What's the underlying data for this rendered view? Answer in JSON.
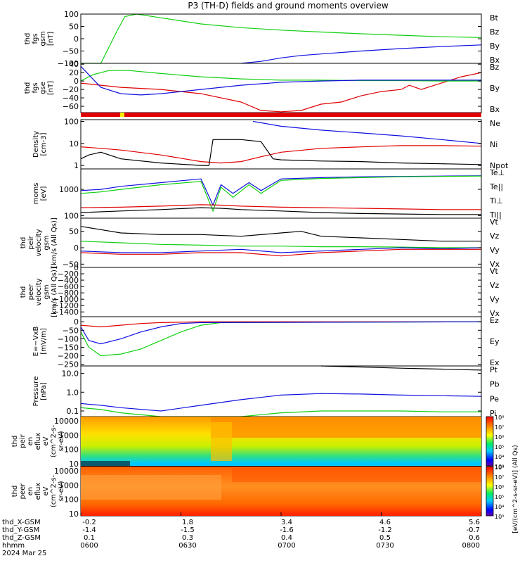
{
  "title": "P3 (TH-D) fields and ground moments overview",
  "colors": {
    "black": "#000000",
    "red": "#e00000",
    "green": "#10d010",
    "blue": "#1010e0"
  },
  "chart_data": [
    {
      "type": "line",
      "panel": "fgs_gsm",
      "ylabel": [
        "thd",
        "fgs",
        "gsm",
        "[nT]"
      ],
      "ylim": [
        -100,
        100
      ],
      "ticks": [
        "100",
        "50",
        "0",
        "−50",
        "−100"
      ],
      "legend": [
        {
          "label": "Bt",
          "color": "black"
        },
        {
          "label": "Bz",
          "color": "red"
        },
        {
          "label": "By",
          "color": "green"
        },
        {
          "label": "Bx",
          "color": "blue"
        }
      ],
      "series": [
        {
          "name": "By",
          "color": "green",
          "x": [
            0,
            0.05,
            0.09,
            0.11,
            0.14,
            0.2,
            0.3,
            0.4,
            0.5,
            0.6,
            0.7,
            0.8,
            0.9,
            1.0
          ],
          "y": [
            -100,
            -100,
            30,
            90,
            100,
            85,
            60,
            45,
            35,
            27,
            20,
            14,
            8,
            5
          ]
        },
        {
          "name": "Bx",
          "color": "blue",
          "x": [
            0.4,
            0.45,
            0.5,
            0.55,
            0.6,
            0.7,
            0.8,
            0.9,
            1.0
          ],
          "y": [
            -100,
            -92,
            -78,
            -68,
            -62,
            -50,
            -40,
            -32,
            -25
          ]
        }
      ]
    },
    {
      "type": "line",
      "panel": "fgs_gse",
      "ylabel": [
        "thd",
        "fgs",
        "gse",
        "[nT]"
      ],
      "ylim": [
        -75,
        42
      ],
      "ticks": [
        "40",
        "20",
        "0",
        "−20",
        "−40",
        "−60"
      ],
      "legend": [
        {
          "label": "Bz",
          "color": "red"
        },
        {
          "label": "By",
          "color": "green"
        },
        {
          "label": "Bx",
          "color": "blue"
        }
      ],
      "series": [
        {
          "name": "Bz",
          "color": "red",
          "x": [
            0,
            0.05,
            0.1,
            0.2,
            0.3,
            0.4,
            0.45,
            0.5,
            0.55,
            0.6,
            0.65,
            0.7,
            0.75,
            0.8,
            0.82,
            0.85,
            0.9,
            0.95,
            1.0
          ],
          "y": [
            -5,
            -10,
            -15,
            -20,
            -30,
            -50,
            -70,
            -73,
            -70,
            -55,
            -50,
            -35,
            -25,
            -20,
            -10,
            -20,
            -5,
            10,
            20
          ]
        },
        {
          "name": "By",
          "color": "green",
          "x": [
            0,
            0.03,
            0.07,
            0.12,
            0.2,
            0.3,
            0.4,
            0.5,
            0.6,
            0.7,
            0.8,
            0.9,
            1.0
          ],
          "y": [
            0,
            15,
            25,
            25,
            18,
            10,
            5,
            2,
            2,
            1,
            1,
            0,
            0
          ]
        },
        {
          "name": "Bx",
          "color": "blue",
          "x": [
            0,
            0.02,
            0.05,
            0.1,
            0.15,
            0.2,
            0.3,
            0.4,
            0.5,
            0.6,
            0.7,
            0.8,
            0.9,
            1.0
          ],
          "y": [
            35,
            15,
            -15,
            -30,
            -33,
            -30,
            -20,
            -10,
            -3,
            0,
            2,
            2,
            2,
            2
          ]
        }
      ]
    },
    {
      "type": "line",
      "panel": "density",
      "ylabel": [
        "Density",
        "[cm-3]"
      ],
      "scale": "log",
      "ylim": [
        0.7,
        120
      ],
      "ticks": [
        "100",
        "10",
        "1"
      ],
      "legend": [
        {
          "label": "Ne",
          "color": "red"
        },
        {
          "label": "Ni",
          "color": "black"
        },
        {
          "label": "Npot",
          "color": "blue"
        }
      ],
      "series": [
        {
          "name": "Ne",
          "color": "red",
          "x": [
            0,
            0.05,
            0.1,
            0.2,
            0.3,
            0.35,
            0.4,
            0.45,
            0.5,
            0.6,
            0.7,
            0.8,
            0.9,
            1.0
          ],
          "y": [
            7,
            6,
            5,
            3,
            1.5,
            1.3,
            1.5,
            2.5,
            4,
            6,
            7,
            8,
            8,
            7.5
          ]
        },
        {
          "name": "Ni",
          "color": "black",
          "x": [
            0,
            0.02,
            0.05,
            0.1,
            0.2,
            0.3,
            0.32,
            0.33,
            0.4,
            0.45,
            0.48,
            0.5,
            0.6,
            0.7,
            0.8,
            0.9,
            1.0
          ],
          "y": [
            2,
            3,
            4,
            2,
            1.3,
            1,
            1,
            15,
            15,
            12,
            2,
            1.8,
            1.6,
            1.5,
            1.3,
            1.2,
            1.1
          ]
        },
        {
          "name": "Npot",
          "color": "blue",
          "x": [
            0.43,
            0.5,
            0.6,
            0.7,
            0.8,
            0.9,
            1.0
          ],
          "y": [
            100,
            60,
            40,
            30,
            22,
            15,
            10
          ]
        }
      ]
    },
    {
      "type": "line",
      "panel": "moments",
      "ylabel": [
        "moms",
        "[eV]"
      ],
      "scale": "log",
      "ylim": [
        80,
        6000
      ],
      "ticks": [
        "1000",
        "100"
      ],
      "legend": [
        {
          "label": "Te⊥",
          "color": "red"
        },
        {
          "label": "Te||",
          "color": "black"
        },
        {
          "label": "Ti⊥",
          "color": "blue"
        },
        {
          "label": "Ti||",
          "color": "green"
        }
      ],
      "series": [
        {
          "name": "Ti⊥",
          "color": "blue",
          "x": [
            0,
            0.05,
            0.1,
            0.2,
            0.3,
            0.33,
            0.35,
            0.38,
            0.42,
            0.45,
            0.5,
            0.6,
            0.7,
            0.8,
            0.9,
            1.0
          ],
          "y": [
            900,
            1000,
            1300,
            1800,
            2500,
            250,
            1500,
            700,
            1800,
            900,
            2500,
            2800,
            3000,
            3100,
            3200,
            3300
          ]
        },
        {
          "name": "Ti||",
          "color": "green",
          "x": [
            0,
            0.05,
            0.1,
            0.2,
            0.3,
            0.33,
            0.35,
            0.38,
            0.42,
            0.45,
            0.5,
            0.6,
            0.7,
            0.8,
            0.9,
            1.0
          ],
          "y": [
            700,
            800,
            1000,
            1500,
            2000,
            150,
            1200,
            500,
            1500,
            700,
            2200,
            2600,
            2800,
            3000,
            3100,
            3200
          ]
        },
        {
          "name": "Te⊥",
          "color": "red",
          "x": [
            0,
            0.1,
            0.2,
            0.3,
            0.35,
            0.4,
            0.5,
            0.6,
            0.7,
            0.8,
            0.9,
            1.0
          ],
          "y": [
            200,
            210,
            230,
            260,
            250,
            230,
            210,
            200,
            190,
            180,
            170,
            170
          ]
        },
        {
          "name": "Te||",
          "color": "black",
          "x": [
            0,
            0.1,
            0.2,
            0.3,
            0.35,
            0.4,
            0.5,
            0.6,
            0.7,
            0.8,
            0.9,
            1.0
          ],
          "y": [
            130,
            150,
            170,
            200,
            190,
            170,
            150,
            130,
            120,
            115,
            110,
            110
          ]
        }
      ]
    },
    {
      "type": "line",
      "panel": "peir_velocity",
      "ylabel": [
        "thd",
        "peir",
        "velocity",
        "gsm",
        "[km/s (All Qs)]"
      ],
      "ylim": [
        -60,
        90
      ],
      "ticks": [
        "50",
        "0",
        "−50"
      ],
      "legend": [
        {
          "label": "Vt",
          "color": "black"
        },
        {
          "label": "Vz",
          "color": "red"
        },
        {
          "label": "Vy",
          "color": "green"
        },
        {
          "label": "Vx",
          "color": "blue"
        }
      ],
      "series": [
        {
          "name": "Vt",
          "color": "black",
          "x": [
            0,
            0.05,
            0.1,
            0.2,
            0.3,
            0.4,
            0.5,
            0.55,
            0.6,
            0.7,
            0.8,
            0.9,
            1.0
          ],
          "y": [
            65,
            55,
            45,
            40,
            40,
            35,
            45,
            50,
            35,
            30,
            25,
            20,
            20
          ]
        },
        {
          "name": "Vy",
          "color": "green",
          "x": [
            0,
            0.1,
            0.2,
            0.3,
            0.4,
            0.5,
            0.6,
            0.7,
            0.8,
            0.9,
            1.0
          ],
          "y": [
            20,
            15,
            10,
            8,
            5,
            5,
            3,
            3,
            2,
            0,
            0
          ]
        },
        {
          "name": "Vx",
          "color": "blue",
          "x": [
            0,
            0.1,
            0.2,
            0.3,
            0.4,
            0.5,
            0.6,
            0.7,
            0.8,
            0.9,
            1.0
          ],
          "y": [
            -10,
            -15,
            -15,
            -10,
            -5,
            -15,
            -10,
            -5,
            0,
            -3,
            0
          ]
        },
        {
          "name": "Vz",
          "color": "red",
          "x": [
            0,
            0.1,
            0.2,
            0.3,
            0.4,
            0.5,
            0.6,
            0.7,
            0.8,
            0.9,
            1.0
          ],
          "y": [
            -15,
            -20,
            -20,
            -15,
            -15,
            -25,
            -15,
            -10,
            -5,
            -5,
            -5
          ]
        }
      ]
    },
    {
      "type": "line",
      "panel": "peer_velocity",
      "ylabel": [
        "thd",
        "peer",
        "velocity",
        "gsm",
        "[km/s (All Qs)]"
      ],
      "ylim": [
        -1550,
        0
      ],
      "ticks": [
        "0",
        "−200",
        "−400",
        "−600",
        "−800",
        "−1000",
        "−1200",
        "−1400"
      ],
      "legend": [
        {
          "label": "Vt",
          "color": "black"
        },
        {
          "label": "Vz",
          "color": "red"
        },
        {
          "label": "Vy",
          "color": "green"
        },
        {
          "label": "Vx",
          "color": "blue"
        }
      ],
      "series": []
    },
    {
      "type": "line",
      "panel": "e_field",
      "ylabel": [
        "E=−VxB",
        "[mV/m]"
      ],
      "ylim": [
        -260,
        30
      ],
      "ticks": [
        "0",
        "−50",
        "−100",
        "−150",
        "−200",
        "−250"
      ],
      "legend": [
        {
          "label": "Ez",
          "color": "red"
        },
        {
          "label": "Ey",
          "color": "green"
        },
        {
          "label": "Ex",
          "color": "blue"
        }
      ],
      "series": [
        {
          "name": "Ez",
          "color": "red",
          "x": [
            0,
            0.05,
            0.1,
            0.15,
            0.2,
            0.3,
            1.0
          ],
          "y": [
            -20,
            -30,
            -20,
            -10,
            -5,
            0,
            0
          ]
        },
        {
          "name": "Ey",
          "color": "green",
          "x": [
            0,
            0.02,
            0.05,
            0.1,
            0.15,
            0.2,
            0.25,
            0.3,
            0.35,
            1.0
          ],
          "y": [
            -60,
            -150,
            -200,
            -190,
            -160,
            -110,
            -60,
            -20,
            -5,
            0
          ]
        },
        {
          "name": "Ex",
          "color": "blue",
          "x": [
            0,
            0.02,
            0.05,
            0.1,
            0.15,
            0.2,
            0.25,
            0.3,
            1.0
          ],
          "y": [
            -30,
            -110,
            -130,
            -100,
            -60,
            -30,
            -10,
            -5,
            0
          ]
        }
      ]
    },
    {
      "type": "line",
      "panel": "pressure",
      "ylabel": [
        "Pressure",
        "[nPa]"
      ],
      "scale": "log",
      "ylim": [
        0.05,
        25
      ],
      "ticks": [
        "10.0",
        "1.0",
        "0.1"
      ],
      "legend": [
        {
          "label": "Pt",
          "color": "black"
        },
        {
          "label": "Pb",
          "color": "red"
        },
        {
          "label": "Pe",
          "color": "green"
        },
        {
          "label": "Pi",
          "color": "blue"
        }
      ],
      "series": [
        {
          "name": "Pt",
          "color": "black",
          "x": [
            0.6,
            0.7,
            0.8,
            0.9,
            1.0
          ],
          "y": [
            25,
            22,
            19,
            17,
            15
          ]
        },
        {
          "name": "Pi",
          "color": "blue",
          "x": [
            0,
            0.05,
            0.1,
            0.2,
            0.3,
            0.4,
            0.5,
            0.6,
            0.7,
            0.8,
            0.9,
            1.0
          ],
          "y": [
            0.25,
            0.2,
            0.15,
            0.1,
            0.2,
            0.4,
            0.7,
            0.85,
            0.8,
            0.7,
            0.65,
            0.6
          ]
        },
        {
          "name": "Pe",
          "color": "green",
          "x": [
            0,
            0.05,
            0.1,
            0.2,
            0.3,
            0.4,
            0.5,
            0.6,
            0.7,
            0.8,
            0.9,
            1.0
          ],
          "y": [
            0.15,
            0.12,
            0.08,
            0.05,
            0.04,
            0.05,
            0.08,
            0.1,
            0.1,
            0.1,
            0.09,
            0.09
          ]
        }
      ]
    },
    {
      "type": "heatmap",
      "panel": "peir_eflux",
      "ylabel": [
        "thd",
        "peir",
        "en",
        "eflux",
        "eV",
        "(cm^2-s-",
        "sr-eV)"
      ],
      "scale": "log",
      "ylim": [
        7,
        20000
      ],
      "ticks": [
        "10000",
        "1000",
        "100",
        "10"
      ],
      "colorbar": {
        "ticks": [
          "10⁸",
          "10⁷",
          "10⁶",
          "10⁵",
          "10⁴",
          "10³"
        ],
        "label": "[eV/(cm^2-s-sr-eV)] (All Qs)"
      }
    },
    {
      "type": "heatmap",
      "panel": "peer_eflux",
      "ylabel": [
        "thd",
        "peer",
        "en",
        "eflux",
        "eV",
        "(cm^2-s-",
        "sr-eV)"
      ],
      "scale": "log",
      "ylim": [
        7,
        20000
      ],
      "ticks": [
        "10000",
        "1000",
        "100",
        "10"
      ],
      "colorbar": {
        "ticks": [
          "10⁸",
          "10⁷",
          "10⁶",
          "10⁵",
          "10⁴",
          "10³"
        ]
      }
    }
  ],
  "xaxis": {
    "row_labels": [
      "thd_X-GSM",
      "thd_Y-GSM",
      "thd_Z-GSM",
      "hhmm",
      "2024 Mar 25"
    ],
    "columns": [
      {
        "x": "-0.2",
        "y": "-1.4",
        "z": "0.1",
        "t": "0600"
      },
      {
        "x": "1.8",
        "y": "-1.5",
        "z": "0.3",
        "t": "0630"
      },
      {
        "x": "3.4",
        "y": "-1.6",
        "z": "0.4",
        "t": "0700"
      },
      {
        "x": "4.6",
        "y": "-1.2",
        "z": "0.5",
        "t": "0730"
      },
      {
        "x": "5.6",
        "y": "-0.7",
        "z": "0.6",
        "t": "0800"
      }
    ]
  }
}
